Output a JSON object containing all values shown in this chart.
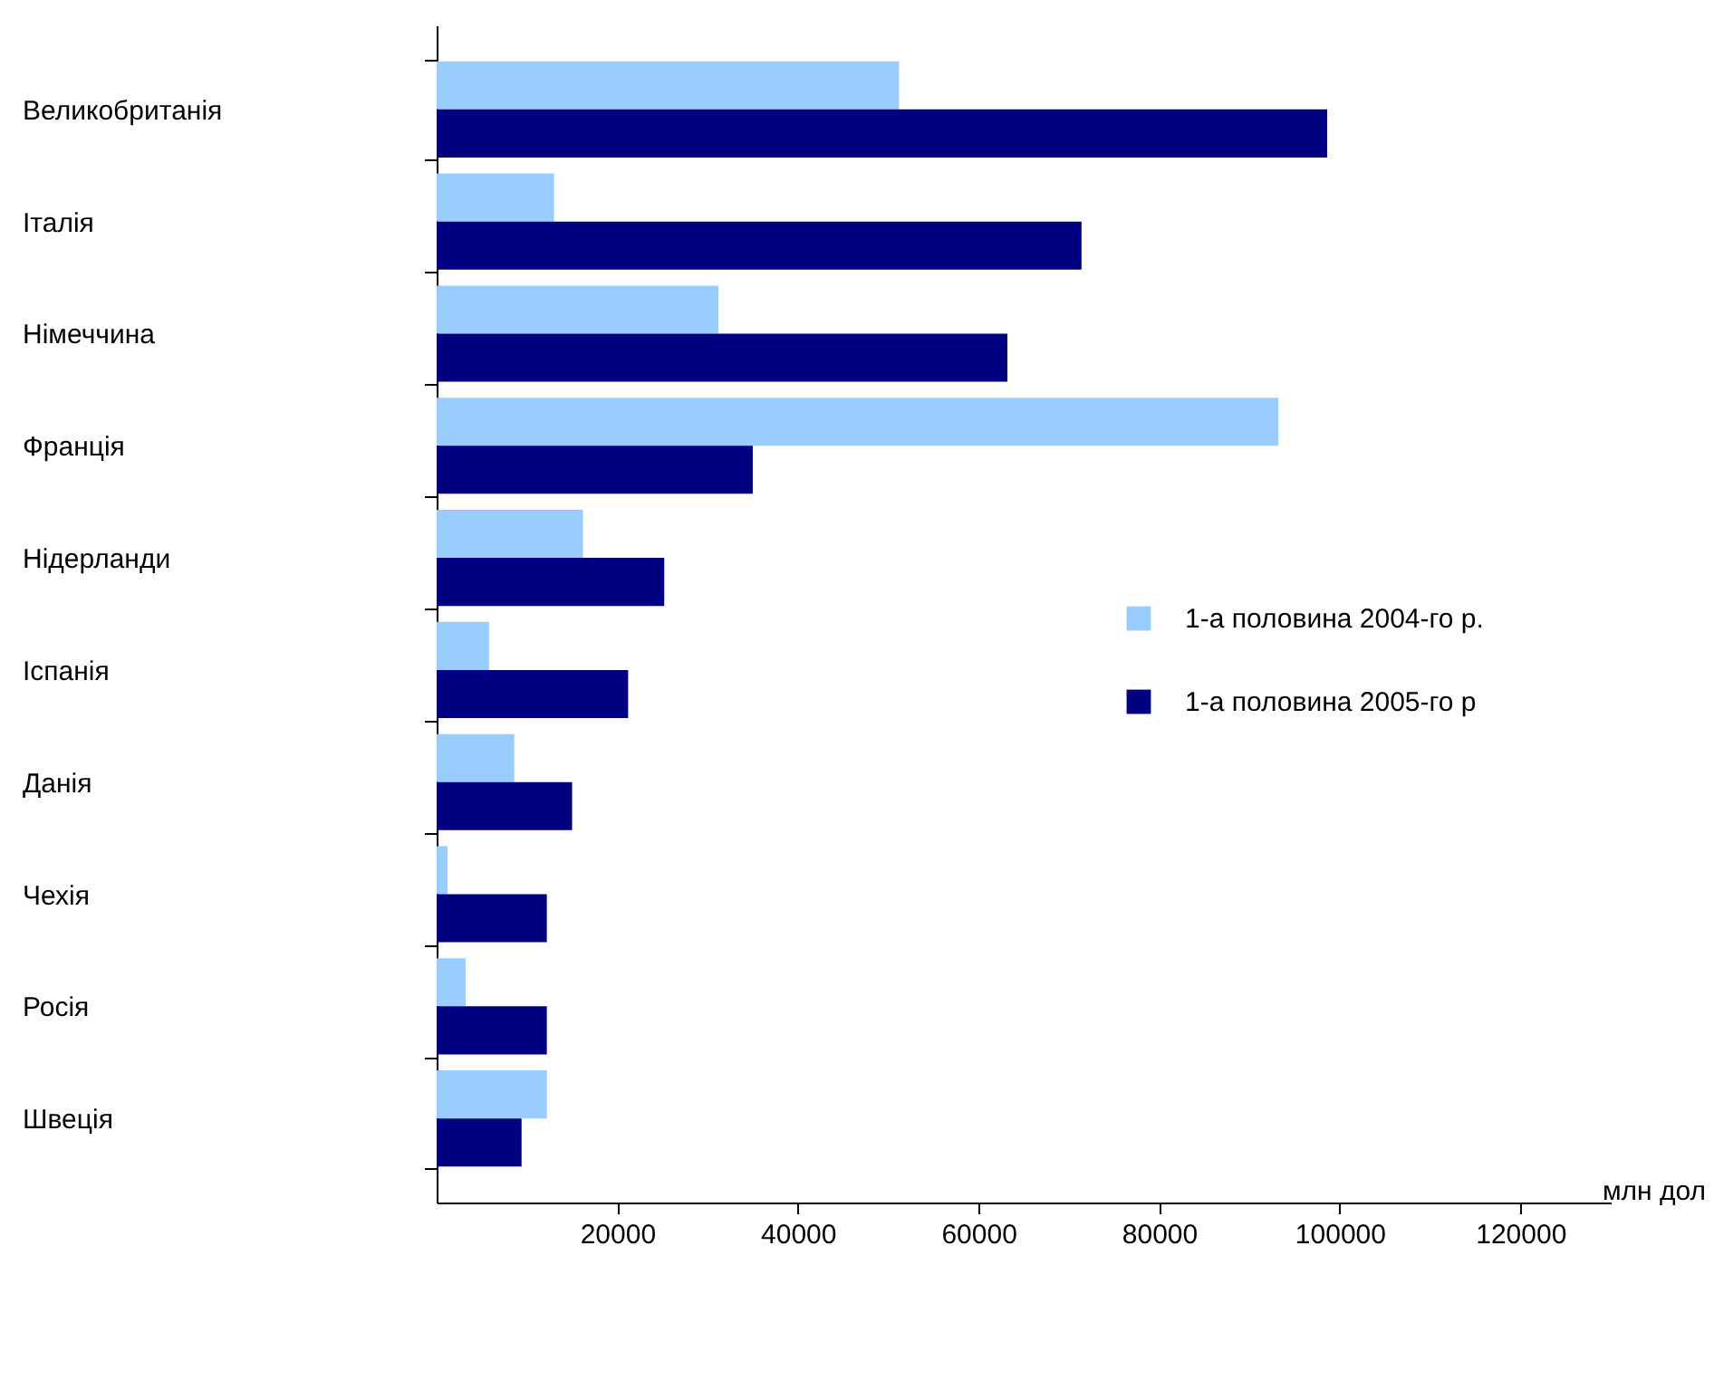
{
  "chart_data": {
    "type": "bar",
    "orientation": "horizontal",
    "xlabel": "млн дол",
    "categories": [
      "Великобританія",
      "Італія",
      "Німеччина",
      "Франція",
      "Нідерланди",
      "Іспанія",
      "Данія",
      "Чехія",
      "Росія",
      "Швеція"
    ],
    "series": [
      {
        "name": "1-а половина 2004-го р.",
        "color": "#99ccff",
        "values": [
          51200,
          13000,
          31200,
          93200,
          16200,
          5800,
          8600,
          1200,
          3200,
          12200
        ]
      },
      {
        "name": "1-а половина 2005-го р",
        "color": "#000080",
        "values": [
          98600,
          71400,
          63200,
          35000,
          25200,
          21200,
          15000,
          12200,
          12200,
          9400
        ]
      }
    ],
    "xlim": [
      0,
      130000
    ],
    "xticks": [
      20000,
      40000,
      60000,
      80000,
      100000,
      120000
    ],
    "grid": false,
    "legend": "right"
  }
}
